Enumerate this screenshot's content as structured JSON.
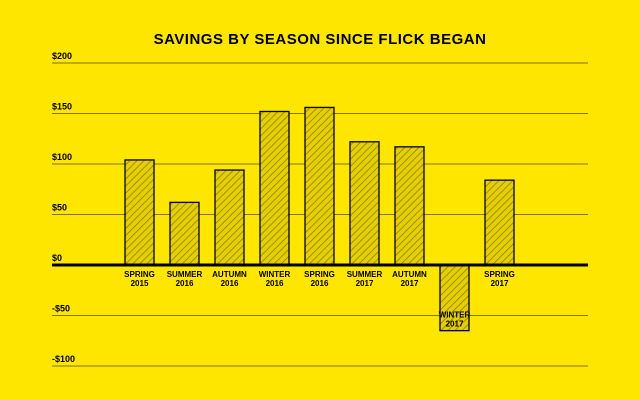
{
  "chart_data": {
    "type": "bar",
    "title": "SAVINGS BY SEASON SINCE FLICK BEGAN",
    "xlabel": "",
    "ylabel": "",
    "ylim": [
      -100,
      200
    ],
    "yticks": [
      200,
      150,
      100,
      50,
      0,
      -50,
      -100
    ],
    "ytick_labels": [
      "$200",
      "$150",
      "$100",
      "$50",
      "$0",
      "-$50",
      "-$100"
    ],
    "categories": [
      [
        "SPRING",
        "2015"
      ],
      [
        "SUMMER",
        "2016"
      ],
      [
        "AUTUMN",
        "2016"
      ],
      [
        "WINTER",
        "2016"
      ],
      [
        "SPRING",
        "2016"
      ],
      [
        "SUMMER",
        "2017"
      ],
      [
        "AUTUMN",
        "2017"
      ],
      [
        "WINTER",
        "2017"
      ],
      [
        "SPRING",
        "2017"
      ]
    ],
    "values": [
      104,
      62,
      94,
      152,
      156,
      122,
      117,
      -65,
      84
    ],
    "grid": true,
    "colors": {
      "background": "#FFE600",
      "bar_fill": "#E6CF00",
      "hatch": "#8F8000",
      "ink": "#000000"
    }
  }
}
